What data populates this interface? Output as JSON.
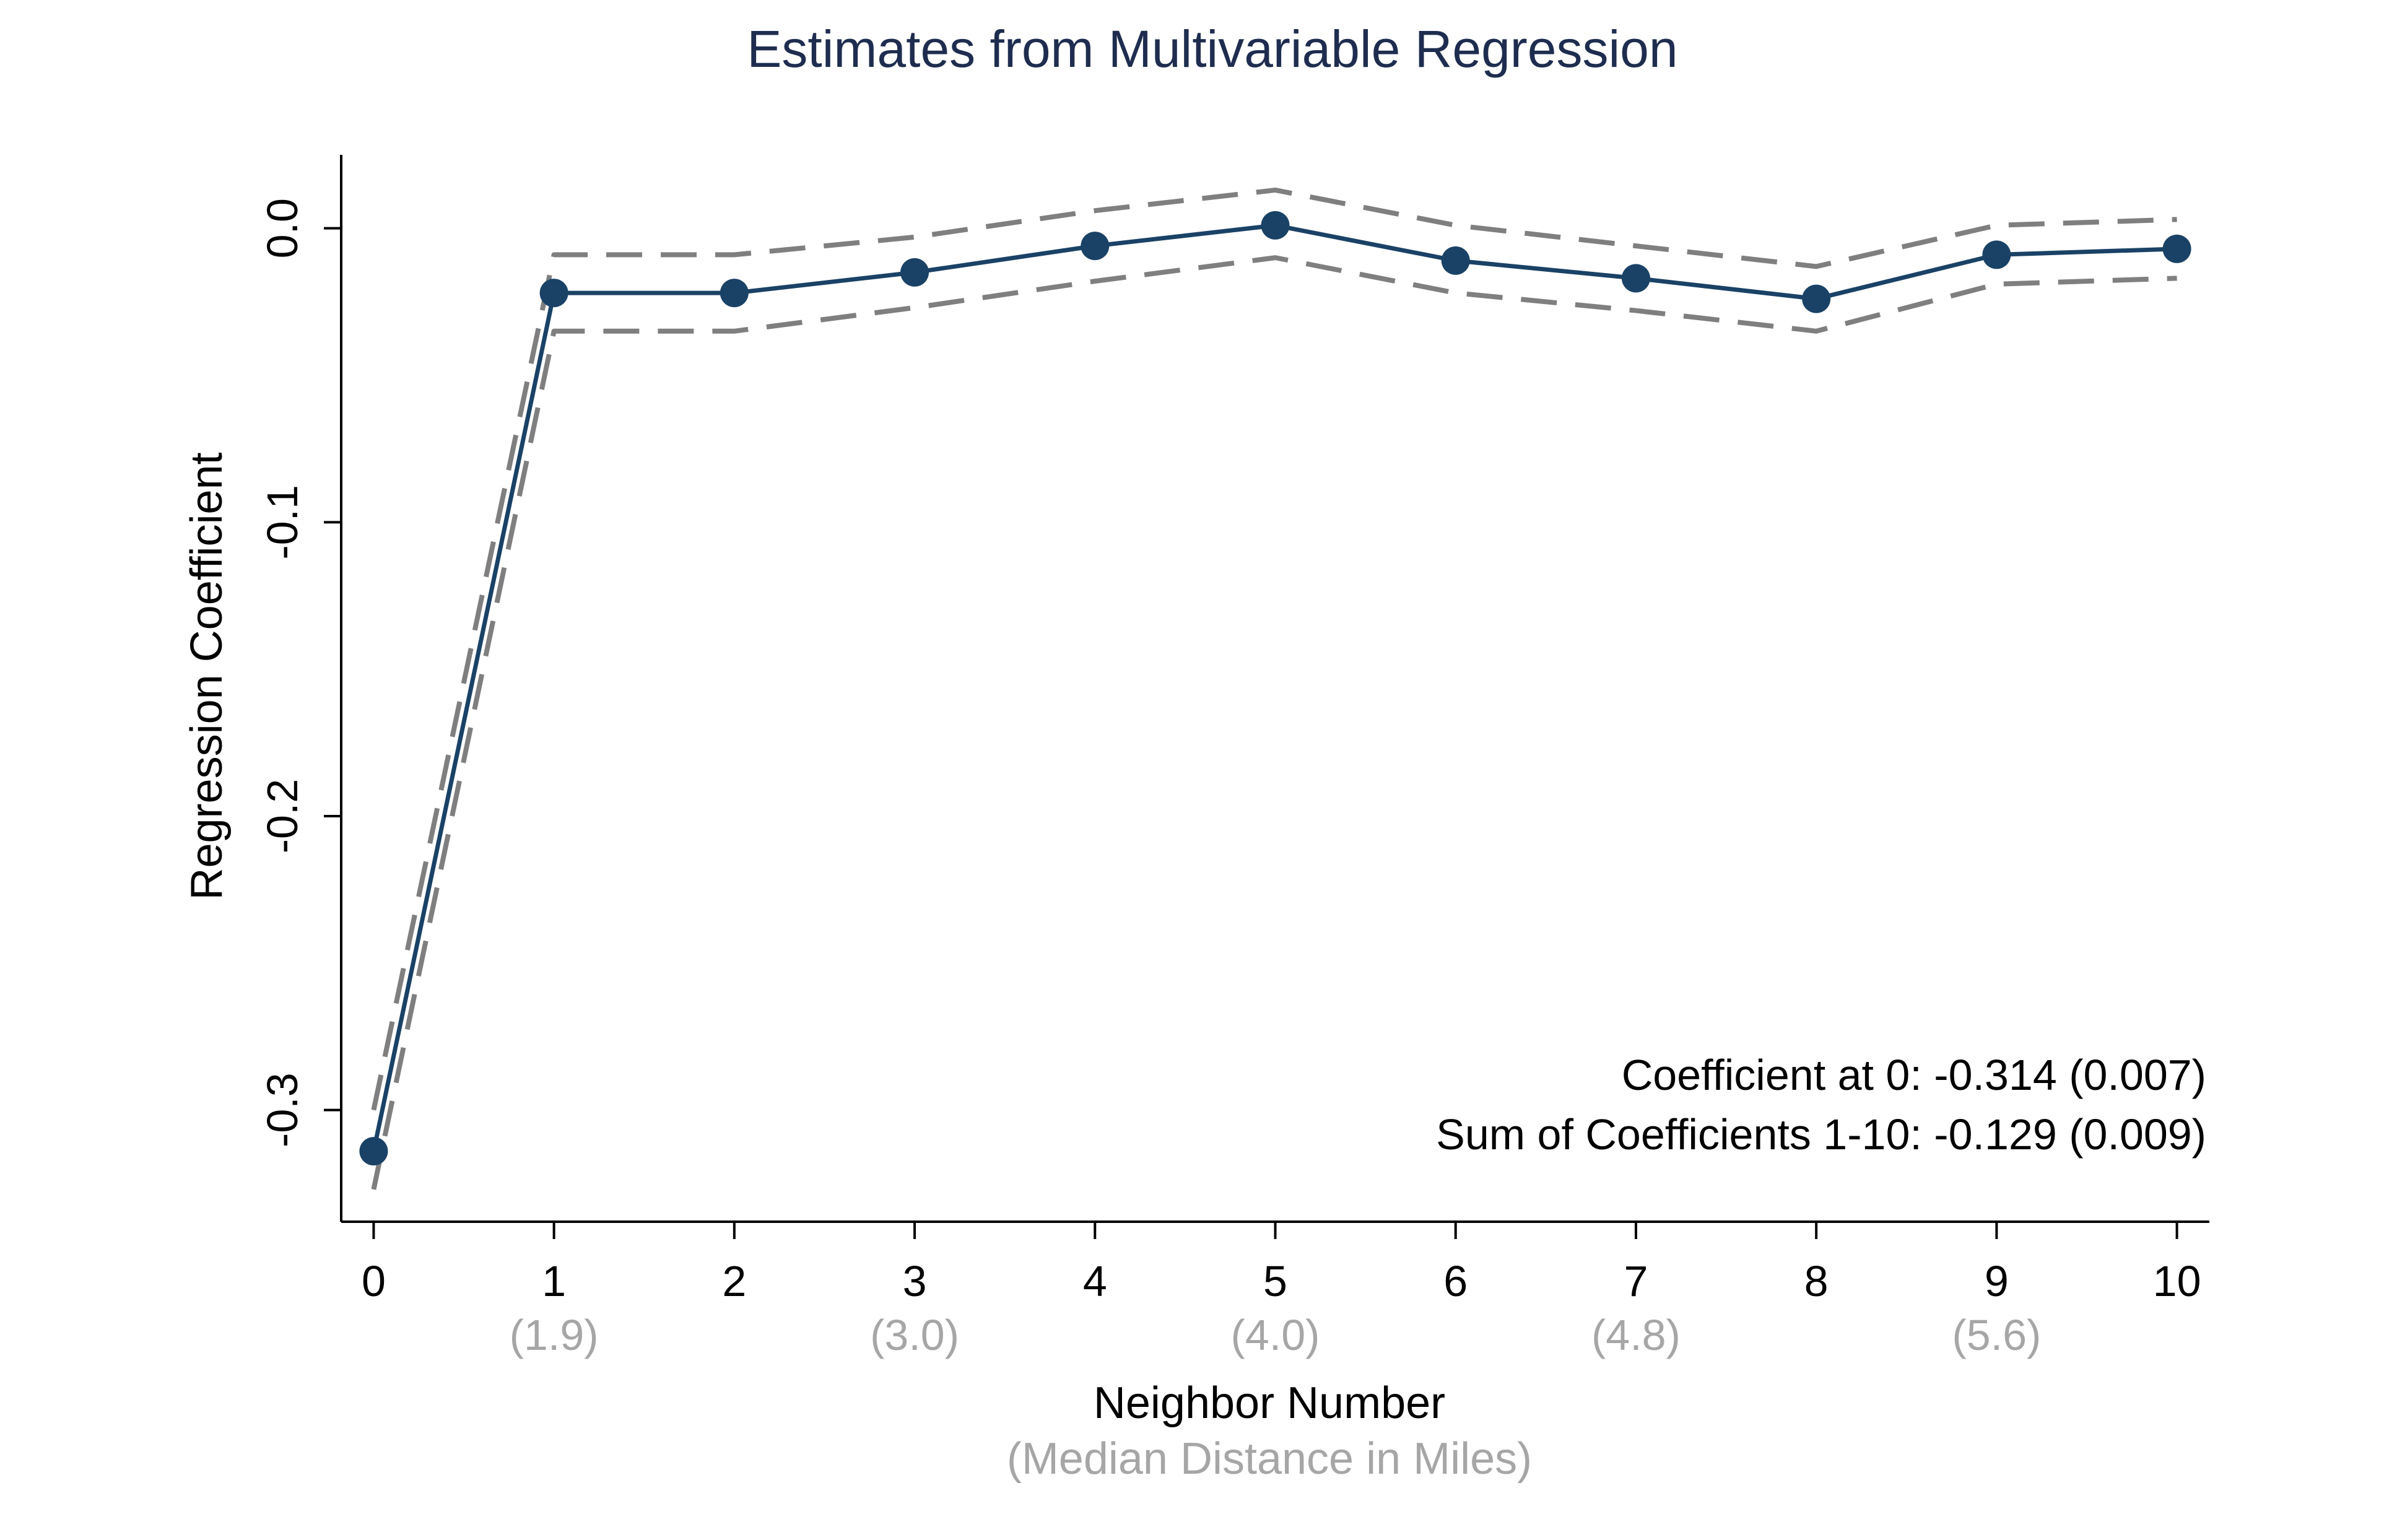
{
  "chart_data": {
    "type": "line",
    "title": "Estimates from Multivariable Regression",
    "xlabel": "Neighbor Number",
    "xlabel_sub": "(Median Distance in Miles)",
    "ylabel": "Regression Coefficient",
    "x": [
      0,
      1,
      2,
      3,
      4,
      5,
      6,
      7,
      8,
      9,
      10
    ],
    "x_tick_labels": [
      "0",
      "1",
      "2",
      "3",
      "4",
      "5",
      "6",
      "7",
      "8",
      "9",
      "10"
    ],
    "x_sub_tick_labels": [
      {
        "x": 1,
        "label": "(1.9)"
      },
      {
        "x": 3,
        "label": "(3.0)"
      },
      {
        "x": 5,
        "label": "(4.0)"
      },
      {
        "x": 7,
        "label": "(4.8)"
      },
      {
        "x": 9,
        "label": "(5.6)"
      }
    ],
    "y_ticks": [
      0.0,
      -0.1,
      -0.2,
      -0.3
    ],
    "y_tick_labels": [
      "0.0",
      "-0.1",
      "-0.2",
      "-0.3"
    ],
    "xlim": [
      -0.18,
      10.18
    ],
    "ylim": [
      -0.338,
      0.025
    ],
    "series": [
      {
        "role": "estimate",
        "style": "solid-with-markers",
        "values": [
          -0.314,
          -0.022,
          -0.022,
          -0.015,
          -0.006,
          0.001,
          -0.011,
          -0.017,
          -0.024,
          -0.009,
          -0.007
        ]
      },
      {
        "role": "upper-ci",
        "style": "dashed",
        "values": [
          -0.3,
          -0.009,
          -0.009,
          -0.003,
          0.006,
          0.013,
          0.001,
          -0.006,
          -0.013,
          0.001,
          0.003
        ]
      },
      {
        "role": "lower-ci",
        "style": "dashed",
        "values": [
          -0.327,
          -0.035,
          -0.035,
          -0.027,
          -0.018,
          -0.01,
          -0.022,
          -0.028,
          -0.035,
          -0.019,
          -0.017
        ]
      }
    ],
    "annotations": [
      "Coefficient at 0: -0.314 (0.007)",
      "Sum of Coefficients 1-10: -0.129 (0.009)"
    ],
    "grid": false,
    "legend": "none",
    "colors": {
      "title": "#1e2d4f",
      "estimate": "#1a4266",
      "ci": "#7f7f7f",
      "sub_labels": "#a6a6a6",
      "text": "#000000",
      "axis": "#000000"
    }
  }
}
